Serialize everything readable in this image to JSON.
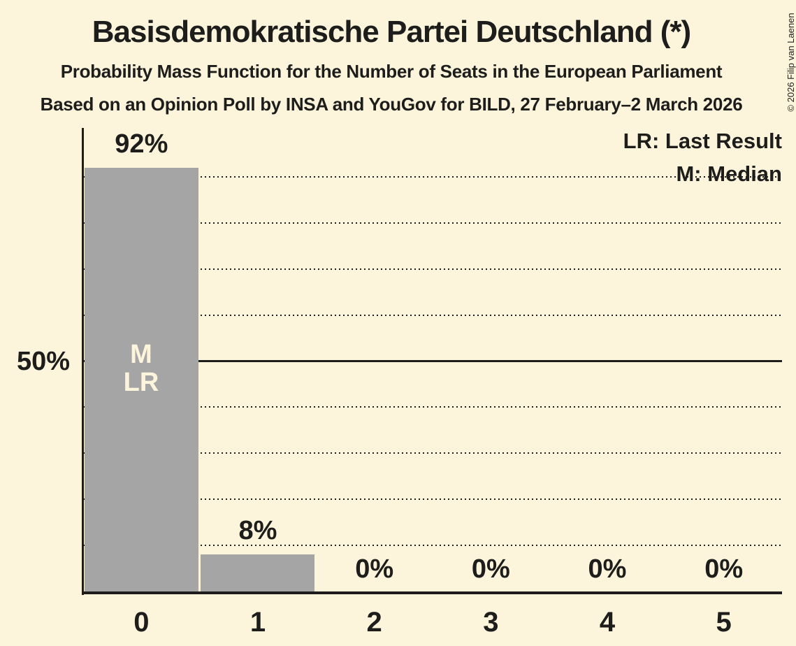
{
  "colors": {
    "background": "#FCF5DC",
    "text": "#1D1D1B",
    "bar": "#A5A5A5",
    "bar_annotation_text": "#FCF5DC"
  },
  "copyright": "© 2026 Filip van Laenen",
  "legend": {
    "lr_label": "LR: Last Result",
    "m_label": "M: Median"
  },
  "y_axis": {
    "tick_label": "50%"
  },
  "annotations": {
    "median_label": "M",
    "last_result_label": "LR"
  },
  "chart_data": {
    "type": "bar",
    "title": "Basisdemokratische Partei Deutschland (*)",
    "subtitle": "Probability Mass Function for the Number of Seats in the European Parliament",
    "source_line": "Based on an Opinion Poll by INSA and YouGov for BILD, 27 February–2 March 2026",
    "categories": [
      "0",
      "1",
      "2",
      "3",
      "4",
      "5"
    ],
    "values": [
      92,
      8,
      0,
      0,
      0,
      0
    ],
    "value_labels": [
      "92%",
      "8%",
      "0%",
      "0%",
      "0%",
      "0%"
    ],
    "ylim": [
      0,
      100
    ],
    "gridlines_pct": [
      10,
      20,
      30,
      40,
      50,
      60,
      70,
      80,
      90
    ],
    "solid_gridline_pct": 50,
    "y_tick": {
      "pct": 50,
      "label": "50%"
    },
    "grid_style": "dotted horizontal",
    "legend_entries": [
      "LR: Last Result",
      "M: Median"
    ],
    "legend_position": "top-right",
    "bar_annotations": [
      {
        "category": "0",
        "labels": [
          "M",
          "LR"
        ]
      }
    ]
  }
}
